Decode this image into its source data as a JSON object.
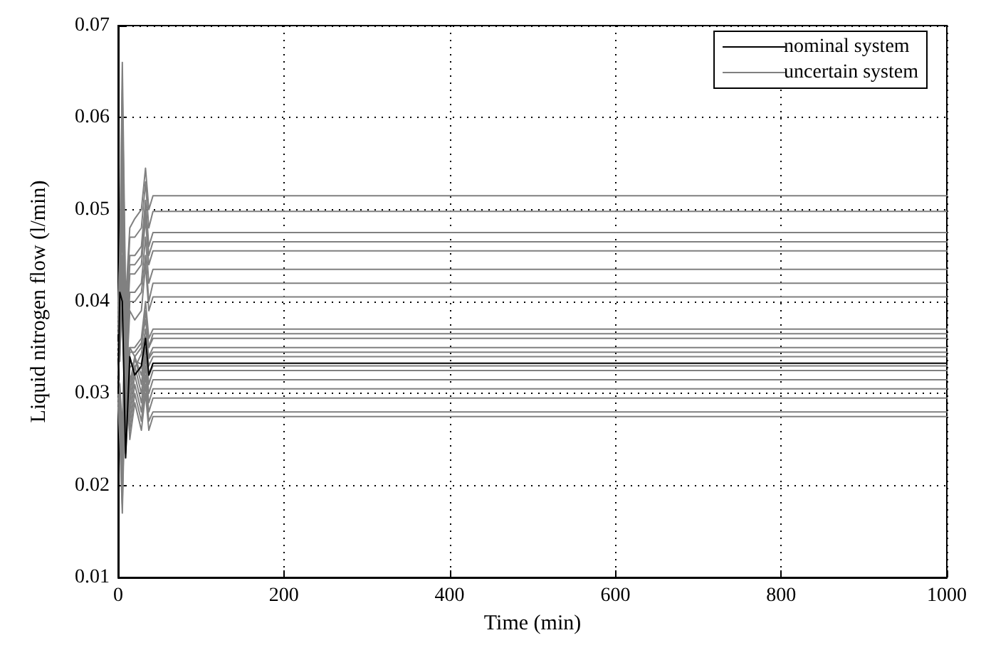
{
  "chart_data": {
    "type": "line",
    "xlabel": "Time (min)",
    "ylabel": "Liquid nitrogen flow (l/min)",
    "x": [
      0,
      2,
      5,
      9,
      14,
      20,
      28,
      33,
      37,
      42,
      1000
    ],
    "xlim": [
      0,
      1000
    ],
    "xticks": [
      0,
      200,
      400,
      600,
      800,
      1000
    ],
    "ylim": [
      0.01,
      0.07
    ],
    "yticks": [
      0.01,
      0.02,
      0.03,
      0.04,
      0.05,
      0.06,
      0.07
    ],
    "grid": true,
    "legend": "top right",
    "marker": "none",
    "line_style": "solid",
    "series": [
      {
        "name": "nominal system",
        "color": "#000000",
        "values": [
          0.03,
          0.041,
          0.04,
          0.023,
          0.034,
          0.032,
          0.033,
          0.036,
          0.032,
          0.0333,
          0.0333
        ]
      },
      {
        "name": "uncertain system",
        "color": "#808080",
        "values": [
          0.04,
          0.045,
          0.066,
          0.04,
          0.048,
          0.049,
          0.05,
          0.0545,
          0.05,
          0.0515,
          0.0515
        ]
      },
      {
        "color": "#808080",
        "values": [
          0.0395,
          0.044,
          0.063,
          0.038,
          0.047,
          0.047,
          0.048,
          0.053,
          0.048,
          0.0498,
          0.0498
        ]
      },
      {
        "color": "#808080",
        "values": [
          0.039,
          0.043,
          0.06,
          0.036,
          0.045,
          0.045,
          0.046,
          0.051,
          0.046,
          0.0475,
          0.0475
        ]
      },
      {
        "color": "#808080",
        "values": [
          0.0385,
          0.042,
          0.058,
          0.035,
          0.044,
          0.044,
          0.045,
          0.05,
          0.045,
          0.0465,
          0.0465
        ]
      },
      {
        "color": "#808080",
        "values": [
          0.038,
          0.041,
          0.056,
          0.034,
          0.043,
          0.043,
          0.044,
          0.049,
          0.044,
          0.0455,
          0.0455
        ]
      },
      {
        "color": "#808080",
        "values": [
          0.0375,
          0.04,
          0.053,
          0.032,
          0.041,
          0.041,
          0.042,
          0.047,
          0.042,
          0.0435,
          0.0435
        ]
      },
      {
        "color": "#808080",
        "values": [
          0.037,
          0.039,
          0.051,
          0.031,
          0.04,
          0.04,
          0.041,
          0.045,
          0.04,
          0.042,
          0.042
        ]
      },
      {
        "color": "#808080",
        "values": [
          0.0365,
          0.038,
          0.049,
          0.03,
          0.039,
          0.038,
          0.039,
          0.044,
          0.039,
          0.0405,
          0.0405
        ]
      },
      {
        "color": "#808080",
        "values": [
          0.0355,
          0.036,
          0.045,
          0.028,
          0.035,
          0.035,
          0.036,
          0.04,
          0.036,
          0.037,
          0.037
        ]
      },
      {
        "color": "#808080",
        "values": [
          0.035,
          0.0365,
          0.044,
          0.027,
          0.035,
          0.034,
          0.035,
          0.039,
          0.035,
          0.0365,
          0.0365
        ]
      },
      {
        "color": "#808080",
        "values": [
          0.0345,
          0.035,
          0.043,
          0.026,
          0.0345,
          0.0345,
          0.0355,
          0.038,
          0.035,
          0.036,
          0.036
        ]
      },
      {
        "color": "#808080",
        "values": [
          0.034,
          0.0335,
          0.042,
          0.025,
          0.0335,
          0.0328,
          0.0343,
          0.037,
          0.034,
          0.035,
          0.035
        ]
      },
      {
        "color": "#808080",
        "values": [
          0.0325,
          0.0342,
          0.041,
          0.0245,
          0.0328,
          0.0335,
          0.0332,
          0.0362,
          0.0338,
          0.0345,
          0.0345
        ]
      },
      {
        "color": "#808080",
        "values": [
          0.032,
          0.0358,
          0.0398,
          0.0235,
          0.0318,
          0.0322,
          0.0328,
          0.036,
          0.033,
          0.034,
          0.034
        ]
      },
      {
        "color": "#808080",
        "values": [
          0.0315,
          0.031,
          0.026,
          0.04,
          0.031,
          0.034,
          0.032,
          0.035,
          0.032,
          0.033,
          0.033
        ]
      },
      {
        "color": "#808080",
        "values": [
          0.031,
          0.03,
          0.025,
          0.039,
          0.03,
          0.034,
          0.031,
          0.035,
          0.031,
          0.0325,
          0.0325
        ]
      },
      {
        "color": "#808080",
        "values": [
          0.0305,
          0.029,
          0.023,
          0.038,
          0.029,
          0.033,
          0.03,
          0.034,
          0.03,
          0.0315,
          0.0315
        ]
      },
      {
        "color": "#808080",
        "values": [
          0.03,
          0.028,
          0.022,
          0.037,
          0.028,
          0.032,
          0.029,
          0.033,
          0.029,
          0.0305,
          0.0305
        ]
      },
      {
        "color": "#808080",
        "values": [
          0.0295,
          0.027,
          0.02,
          0.036,
          0.027,
          0.031,
          0.028,
          0.032,
          0.028,
          0.0295,
          0.0295
        ]
      },
      {
        "color": "#808080",
        "values": [
          0.029,
          0.026,
          0.018,
          0.034,
          0.026,
          0.03,
          0.027,
          0.031,
          0.027,
          0.028,
          0.028
        ]
      },
      {
        "color": "#808080",
        "values": [
          0.0285,
          0.025,
          0.017,
          0.033,
          0.025,
          0.029,
          0.026,
          0.03,
          0.026,
          0.0275,
          0.0275
        ]
      }
    ]
  }
}
